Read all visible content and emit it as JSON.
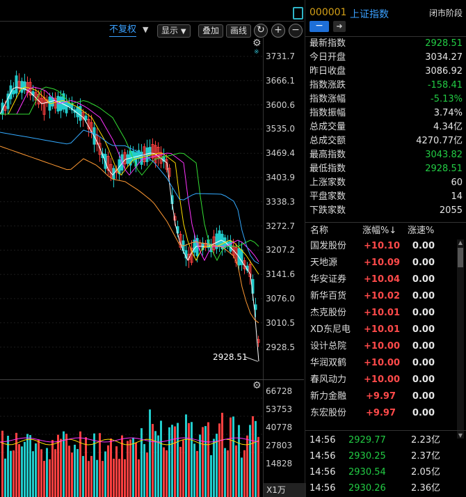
{
  "toolbar": {
    "fuquan_label": "不复权",
    "display_label": "显示",
    "overlay_label": "叠加",
    "draw_label": "画线"
  },
  "price_axis": [
    "3731.7",
    "3666.1",
    "3600.6",
    "3535.0",
    "3469.4",
    "3403.9",
    "3338.3",
    "3272.7",
    "3207.2",
    "3141.6",
    "3076.0",
    "3010.5",
    "2928.5"
  ],
  "last_price_marker": "2928.51",
  "volume_axis": [
    "66728",
    "53753",
    "40778",
    "27803",
    "14828"
  ],
  "volume_unit": "X1万",
  "header": {
    "code": "000001",
    "name": "上证指数",
    "status": "闭市阶段"
  },
  "stats": [
    {
      "label": "最新指数",
      "value": "2928.51",
      "color": "green"
    },
    {
      "label": "今日开盘",
      "value": "3034.27",
      "color": "white"
    },
    {
      "label": "昨日收盘",
      "value": "3086.92",
      "color": "white"
    },
    {
      "label": "指数涨跌",
      "value": "-158.41",
      "color": "green"
    },
    {
      "label": "指数涨幅",
      "value": "-5.13%",
      "color": "green"
    },
    {
      "label": "指数振幅",
      "value": "3.74%",
      "color": "white"
    },
    {
      "label": "总成交量",
      "value": "4.34亿",
      "color": "white"
    },
    {
      "label": "总成交额",
      "value": "4270.77亿",
      "color": "white"
    },
    {
      "label": "最高指数",
      "value": "3043.82",
      "color": "green"
    },
    {
      "label": "最低指数",
      "value": "2928.51",
      "color": "green"
    },
    {
      "label": "上涨家数",
      "value": "60",
      "color": "white"
    },
    {
      "label": "平盘家数",
      "value": "14",
      "color": "white"
    },
    {
      "label": "下跌家数",
      "value": "2055",
      "color": "white"
    }
  ],
  "list_header": {
    "name": "名称",
    "change": "涨幅%↓",
    "speed": "涨速%"
  },
  "stocks": [
    {
      "name": "国发股份",
      "change": "+10.10",
      "speed": "0.00"
    },
    {
      "name": "天地源",
      "change": "+10.09",
      "speed": "0.00"
    },
    {
      "name": "华安证券",
      "change": "+10.04",
      "speed": "0.00"
    },
    {
      "name": "新华百货",
      "change": "+10.02",
      "speed": "0.00"
    },
    {
      "name": "杰克股份",
      "change": "+10.01",
      "speed": "0.00"
    },
    {
      "name": "XD东尼电",
      "change": "+10.01",
      "speed": "0.00"
    },
    {
      "name": "设计总院",
      "change": "+10.00",
      "speed": "0.00"
    },
    {
      "name": "华润双鹤",
      "change": "+10.00",
      "speed": "0.00"
    },
    {
      "name": "春风动力",
      "change": "+10.00",
      "speed": "0.00"
    },
    {
      "name": "新力金融",
      "change": "+9.97",
      "speed": "0.00"
    },
    {
      "name": "东宏股份",
      "change": "+9.97",
      "speed": "0.00"
    }
  ],
  "ticks": [
    {
      "time": "14:56",
      "price": "2929.77",
      "volume": "2.23亿"
    },
    {
      "time": "14:56",
      "price": "2930.25",
      "volume": "2.37亿"
    },
    {
      "time": "14:56",
      "price": "2930.54",
      "volume": "2.05亿"
    },
    {
      "time": "14:56",
      "price": "2930.26",
      "volume": "2.36亿"
    }
  ],
  "colors": {
    "up": "#ff4040",
    "down": "#22cccc",
    "green": "#22cc44",
    "accent": "#d4a017",
    "link": "#3aa0ff"
  }
}
